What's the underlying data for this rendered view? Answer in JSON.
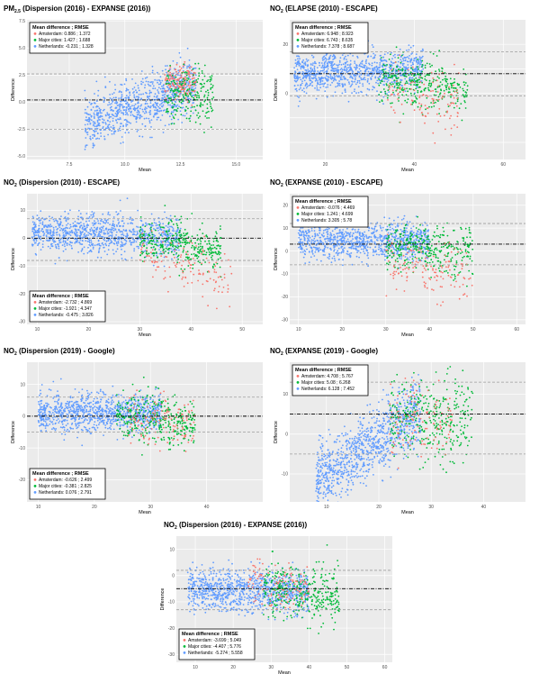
{
  "colors": {
    "amsterdam": "#f8766d",
    "major_cities": "#00ba38",
    "netherlands": "#619cff",
    "panel_bg": "#ebebeb",
    "grid": "#ffffff"
  },
  "chart_data": [
    {
      "type": "scatter",
      "title_main": "PM",
      "title_sub": "2.5",
      "title_rest": " (Dispersion (2016) - EXPANSE (2016))",
      "xlabel": "Mean",
      "ylabel": "Difference",
      "xlim": [
        5.6,
        16.2
      ],
      "ylim": [
        -5.3,
        7.6
      ],
      "xticks": [
        7.5,
        10.0,
        12.5,
        15.0
      ],
      "xtick_labels": [
        "7.5",
        "10.0",
        "12.5",
        "15.0"
      ],
      "yticks": [
        -5.0,
        -2.5,
        0.0,
        2.5,
        5.0,
        7.5
      ],
      "ytick_labels": [
        "-5.0",
        "-2.5",
        "0.0",
        "2.5",
        "5.0",
        "7.5"
      ],
      "mean_line": 0.2,
      "limit_lines": [
        -2.5,
        2.6
      ],
      "legend_title": "Mean difference ; RMSE",
      "legend_position": "top-left",
      "legend": [
        {
          "name": "Amsterdam",
          "stats": "0.886 ; 1.372"
        },
        {
          "name": "Major cities",
          "stats": "1.427 ; 1.688"
        },
        {
          "name": "Netherlands",
          "stats": "-0.231 ; 1.328"
        }
      ],
      "clusters": [
        {
          "group": "netherlands",
          "n": 900,
          "x": [
            8.2,
            13.2
          ],
          "y_base": -2.2,
          "y_slope": 0.8,
          "spread": 1.2
        },
        {
          "group": "amsterdam",
          "n": 160,
          "x": [
            11.8,
            13.2
          ],
          "y_base": 1.8,
          "y_slope": 0.0,
          "spread": 0.8
        },
        {
          "group": "major_cities",
          "n": 220,
          "x": [
            11.8,
            14.0
          ],
          "y_base": 0.6,
          "y_slope": 0.0,
          "spread": 1.3
        }
      ]
    },
    {
      "type": "scatter",
      "title_main": "NO",
      "title_sub": "2",
      "title_rest": " (ELAPSE (2010) - ESCAPE)",
      "xlabel": "Mean",
      "ylabel": "Difference",
      "xlim": [
        12,
        65
      ],
      "ylim": [
        -27,
        30
      ],
      "xticks": [
        20,
        40,
        60
      ],
      "xtick_labels": [
        "20",
        "40",
        "60"
      ],
      "yticks": [
        -20,
        -10,
        0,
        10,
        20
      ],
      "ytick_labels": [
        "",
        "",
        "0",
        "",
        "20"
      ],
      "mean_line": 8,
      "limit_lines": [
        -1,
        17
      ],
      "legend_title": "Mean difference ; RMSE",
      "legend_position": "top-left",
      "legend": [
        {
          "name": "Amsterdam",
          "stats": "6.948 ; 8.923"
        },
        {
          "name": "Major cities",
          "stats": "6.743 ; 8.635"
        },
        {
          "name": "Netherlands",
          "stats": "7.378 ; 8.687"
        }
      ],
      "clusters": [
        {
          "group": "netherlands",
          "n": 1000,
          "x": [
            13,
            42
          ],
          "y_base": 8,
          "y_slope": 0.05,
          "spread": 4
        },
        {
          "group": "major_cities",
          "n": 350,
          "x": [
            32,
            52
          ],
          "y_base": 6,
          "y_slope": -0.2,
          "spread": 5
        },
        {
          "group": "amsterdam",
          "n": 120,
          "x": [
            34,
            50
          ],
          "y_base": 2,
          "y_slope": -0.4,
          "spread": 6
        }
      ]
    },
    {
      "type": "scatter",
      "title_main": "NO",
      "title_sub": "2",
      "title_rest": " (Dispersion (2010) - ESCAPE)",
      "xlabel": "Mean",
      "ylabel": "Difference",
      "xlim": [
        8,
        54
      ],
      "ylim": [
        -31,
        16
      ],
      "xticks": [
        10,
        20,
        30,
        40,
        50
      ],
      "xtick_labels": [
        "10",
        "20",
        "30",
        "40",
        "50"
      ],
      "yticks": [
        -30,
        -20,
        -10,
        0,
        10
      ],
      "ytick_labels": [
        "-30",
        "-20",
        "-10",
        "0",
        "10"
      ],
      "mean_line": 0,
      "limit_lines": [
        -8,
        7
      ],
      "legend_title": "Mean difference ; RMSE",
      "legend_position": "bottom-left",
      "legend": [
        {
          "name": "Amsterdam",
          "stats": "-2.732 ; 4.869"
        },
        {
          "name": "Major cities",
          "stats": "-1.921 ; 4.347"
        },
        {
          "name": "Netherlands",
          "stats": "-0.475 ; 3.826"
        }
      ],
      "clusters": [
        {
          "group": "netherlands",
          "n": 1000,
          "x": [
            9,
            38
          ],
          "y_base": 2,
          "y_slope": -0.05,
          "spread": 3.5
        },
        {
          "group": "major_cities",
          "n": 350,
          "x": [
            30,
            46
          ],
          "y_base": 0,
          "y_slope": -0.3,
          "spread": 4
        },
        {
          "group": "amsterdam",
          "n": 130,
          "x": [
            30,
            48
          ],
          "y_base": -6,
          "y_slope": -0.5,
          "spread": 5
        }
      ]
    },
    {
      "type": "scatter",
      "title_main": "NO",
      "title_sub": "2",
      "title_rest": " (EXPANSE (2010) - ESCAPE)",
      "xlabel": "Mean",
      "ylabel": "Difference",
      "xlim": [
        8,
        62
      ],
      "ylim": [
        -32,
        25
      ],
      "xticks": [
        10,
        20,
        30,
        40,
        50,
        60
      ],
      "xtick_labels": [
        "10",
        "20",
        "30",
        "40",
        "50",
        "60"
      ],
      "yticks": [
        -30,
        -20,
        -10,
        0,
        10,
        20
      ],
      "ytick_labels": [
        "-30",
        "-20",
        "-10",
        "0",
        "10",
        "20"
      ],
      "mean_line": 3,
      "limit_lines": [
        -6,
        12
      ],
      "legend_title": "Mean difference ; RMSE",
      "legend_position": "top-left",
      "legend": [
        {
          "name": "Amsterdam",
          "stats": "-0.076 ; 4.469"
        },
        {
          "name": "Major cities",
          "stats": "1.241 ; 4.699"
        },
        {
          "name": "Netherlands",
          "stats": "3.305 ; 5.78"
        }
      ],
      "clusters": [
        {
          "group": "netherlands",
          "n": 1000,
          "x": [
            10,
            40
          ],
          "y_base": 5,
          "y_slope": -0.03,
          "spread": 4
        },
        {
          "group": "major_cities",
          "n": 350,
          "x": [
            30,
            50
          ],
          "y_base": 2,
          "y_slope": -0.15,
          "spread": 5
        },
        {
          "group": "amsterdam",
          "n": 140,
          "x": [
            30,
            50
          ],
          "y_base": -4,
          "y_slope": -0.4,
          "spread": 6
        }
      ]
    },
    {
      "type": "scatter",
      "title_main": "NO",
      "title_sub": "2",
      "title_rest": " (Dispersion (2019) - Google)",
      "xlabel": "Mean",
      "ylabel": "Difference",
      "xlim": [
        8,
        50
      ],
      "ylim": [
        -27,
        17
      ],
      "xticks": [
        10,
        20,
        30,
        40
      ],
      "xtick_labels": [
        "10",
        "20",
        "30",
        "40"
      ],
      "yticks": [
        -20,
        -10,
        0,
        10
      ],
      "ytick_labels": [
        "-20",
        "-10",
        "0",
        "10"
      ],
      "mean_line": 0,
      "limit_lines": [
        -5,
        6
      ],
      "legend_title": "Mean difference ; RMSE",
      "legend_position": "bottom-left",
      "legend": [
        {
          "name": "Amsterdam",
          "stats": "-0.626 ; 2.499"
        },
        {
          "name": "Major cities",
          "stats": "-0.381 ; 2.825"
        },
        {
          "name": "Netherlands",
          "stats": "0.076 ; 2.791"
        }
      ],
      "clusters": [
        {
          "group": "netherlands",
          "n": 1000,
          "x": [
            10,
            32
          ],
          "y_base": 1,
          "y_slope": 0.0,
          "spread": 3
        },
        {
          "group": "major_cities",
          "n": 350,
          "x": [
            24,
            38
          ],
          "y_base": 0,
          "y_slope": -0.1,
          "spread": 4
        },
        {
          "group": "amsterdam",
          "n": 120,
          "x": [
            26,
            38
          ],
          "y_base": -1,
          "y_slope": -0.1,
          "spread": 4
        }
      ]
    },
    {
      "type": "scatter",
      "title_main": "NO",
      "title_sub": "2",
      "title_rest": " (EXPANSE (2019) - Google)",
      "xlabel": "Mean",
      "ylabel": "Difference",
      "xlim": [
        3,
        48
      ],
      "ylim": [
        -17,
        18
      ],
      "xticks": [
        10,
        20,
        30,
        40
      ],
      "xtick_labels": [
        "10",
        "20",
        "30",
        "40"
      ],
      "yticks": [
        -10,
        0,
        10
      ],
      "ytick_labels": [
        "-10",
        "0",
        "10"
      ],
      "mean_line": 5,
      "limit_lines": [
        -5,
        13
      ],
      "legend_title": "Mean difference ; RMSE",
      "legend_position": "top-left",
      "legend": [
        {
          "name": "Amsterdam",
          "stats": "4.708 ; 5.767"
        },
        {
          "name": "Major cities",
          "stats": "5.08 ; 6.268"
        },
        {
          "name": "Netherlands",
          "stats": "6.128 ; 7.452"
        }
      ],
      "clusters": [
        {
          "group": "netherlands",
          "n": 1000,
          "x": [
            8,
            28
          ],
          "y_base": -12,
          "y_slope": 0.9,
          "spread": 4
        },
        {
          "group": "major_cities",
          "n": 350,
          "x": [
            22,
            38
          ],
          "y_base": 4,
          "y_slope": 0.0,
          "spread": 5
        },
        {
          "group": "amsterdam",
          "n": 120,
          "x": [
            22,
            34
          ],
          "y_base": 4,
          "y_slope": 0.0,
          "spread": 5
        }
      ]
    },
    {
      "type": "scatter",
      "title_main": "NO",
      "title_sub": "2",
      "title_rest": " (Dispersion (2016) - EXPANSE (2016))",
      "xlabel": "Mean",
      "ylabel": "Difference",
      "xlim": [
        5,
        62
      ],
      "ylim": [
        -33,
        15
      ],
      "xticks": [
        10,
        20,
        30,
        40,
        50,
        60
      ],
      "xtick_labels": [
        "10",
        "20",
        "30",
        "40",
        "50",
        "60"
      ],
      "yticks": [
        -30,
        -20,
        -10,
        0,
        10
      ],
      "ytick_labels": [
        "-30",
        "-20",
        "-10",
        "0",
        "10"
      ],
      "mean_line": -5,
      "limit_lines": [
        -13,
        2
      ],
      "legend_title": "Mean difference ; RMSE",
      "legend_position": "bottom-left",
      "legend": [
        {
          "name": "Amsterdam",
          "stats": "-3.699 ; 5.049"
        },
        {
          "name": "Major cities",
          "stats": "-4.407 ; 5.776"
        },
        {
          "name": "Netherlands",
          "stats": "-5.274 ; 5.558"
        }
      ],
      "clusters": [
        {
          "group": "netherlands",
          "n": 1000,
          "x": [
            8,
            40
          ],
          "y_base": -5,
          "y_slope": -0.05,
          "spread": 4
        },
        {
          "group": "major_cities",
          "n": 350,
          "x": [
            28,
            48
          ],
          "y_base": -5,
          "y_slope": -0.15,
          "spread": 5
        },
        {
          "group": "amsterdam",
          "n": 120,
          "x": [
            24,
            40
          ],
          "y_base": -3,
          "y_slope": -0.1,
          "spread": 4
        }
      ]
    }
  ]
}
